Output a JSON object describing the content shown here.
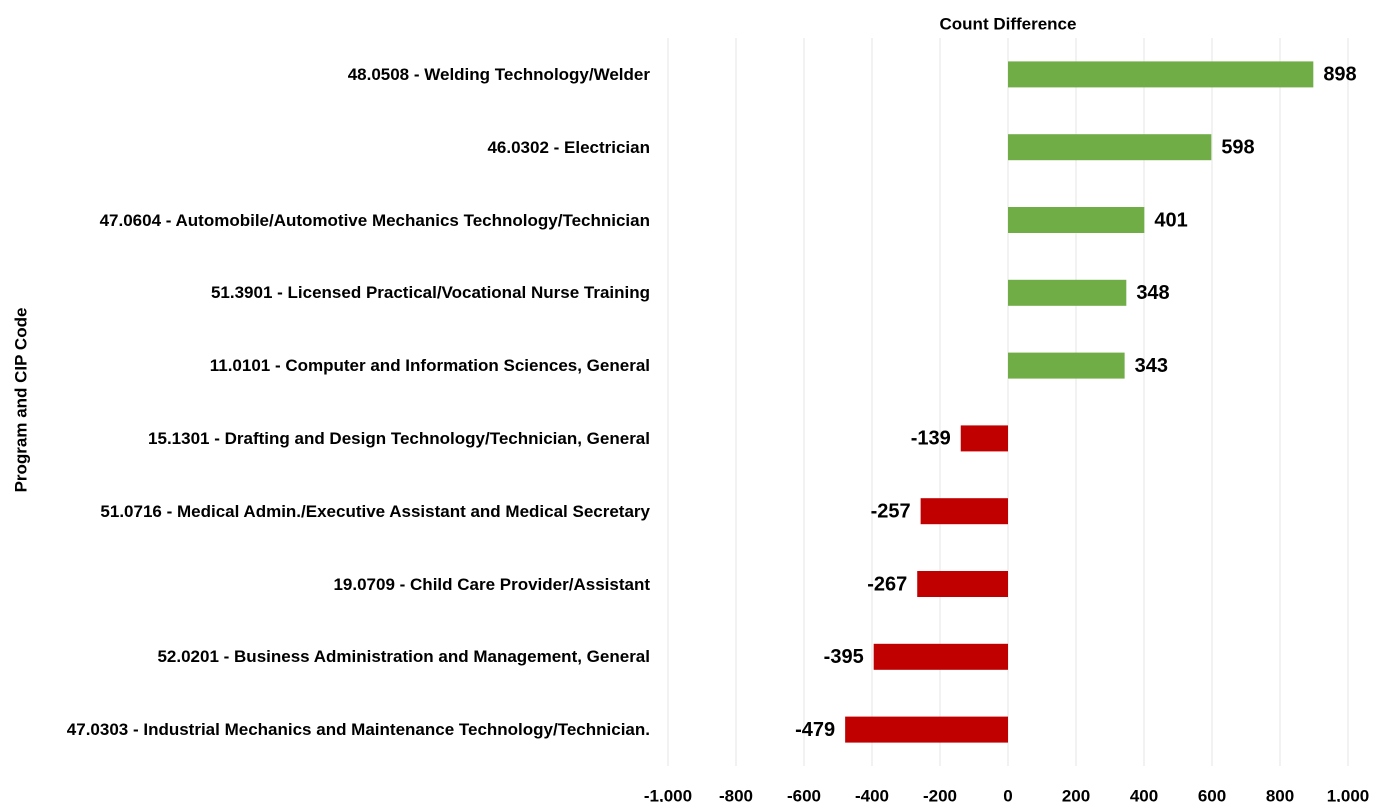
{
  "chart_data": {
    "type": "bar",
    "orientation": "horizontal",
    "title": "Count Difference",
    "y_axis_label": "Program and CIP Code",
    "categories": [
      "48.0508 - Welding Technology/Welder",
      "46.0302 - Electrician",
      "47.0604 - Automobile/Automotive Mechanics Technology/Technician",
      "51.3901 - Licensed Practical/Vocational Nurse Training",
      "11.0101 - Computer and Information Sciences, General",
      "15.1301 - Drafting and Design Technology/Technician, General",
      "51.0716 - Medical Admin./Executive Assistant and Medical Secretary",
      "19.0709 - Child Care Provider/Assistant",
      "52.0201 - Business Administration and Management, General",
      "47.0303 - Industrial Mechanics and Maintenance Technology/Technician."
    ],
    "values": [
      898,
      598,
      401,
      348,
      343,
      -139,
      -257,
      -267,
      -395,
      -479
    ],
    "color_positive": "#70ad47",
    "color_negative": "#c00000",
    "xlim": [
      -1000,
      1000
    ],
    "xticks": [
      {
        "value": -1000,
        "label": "-1,000"
      },
      -800,
      -600,
      -400,
      -200,
      0,
      200,
      400,
      600,
      800,
      {
        "value": 1000,
        "label": "1,000"
      }
    ],
    "grid": true
  }
}
